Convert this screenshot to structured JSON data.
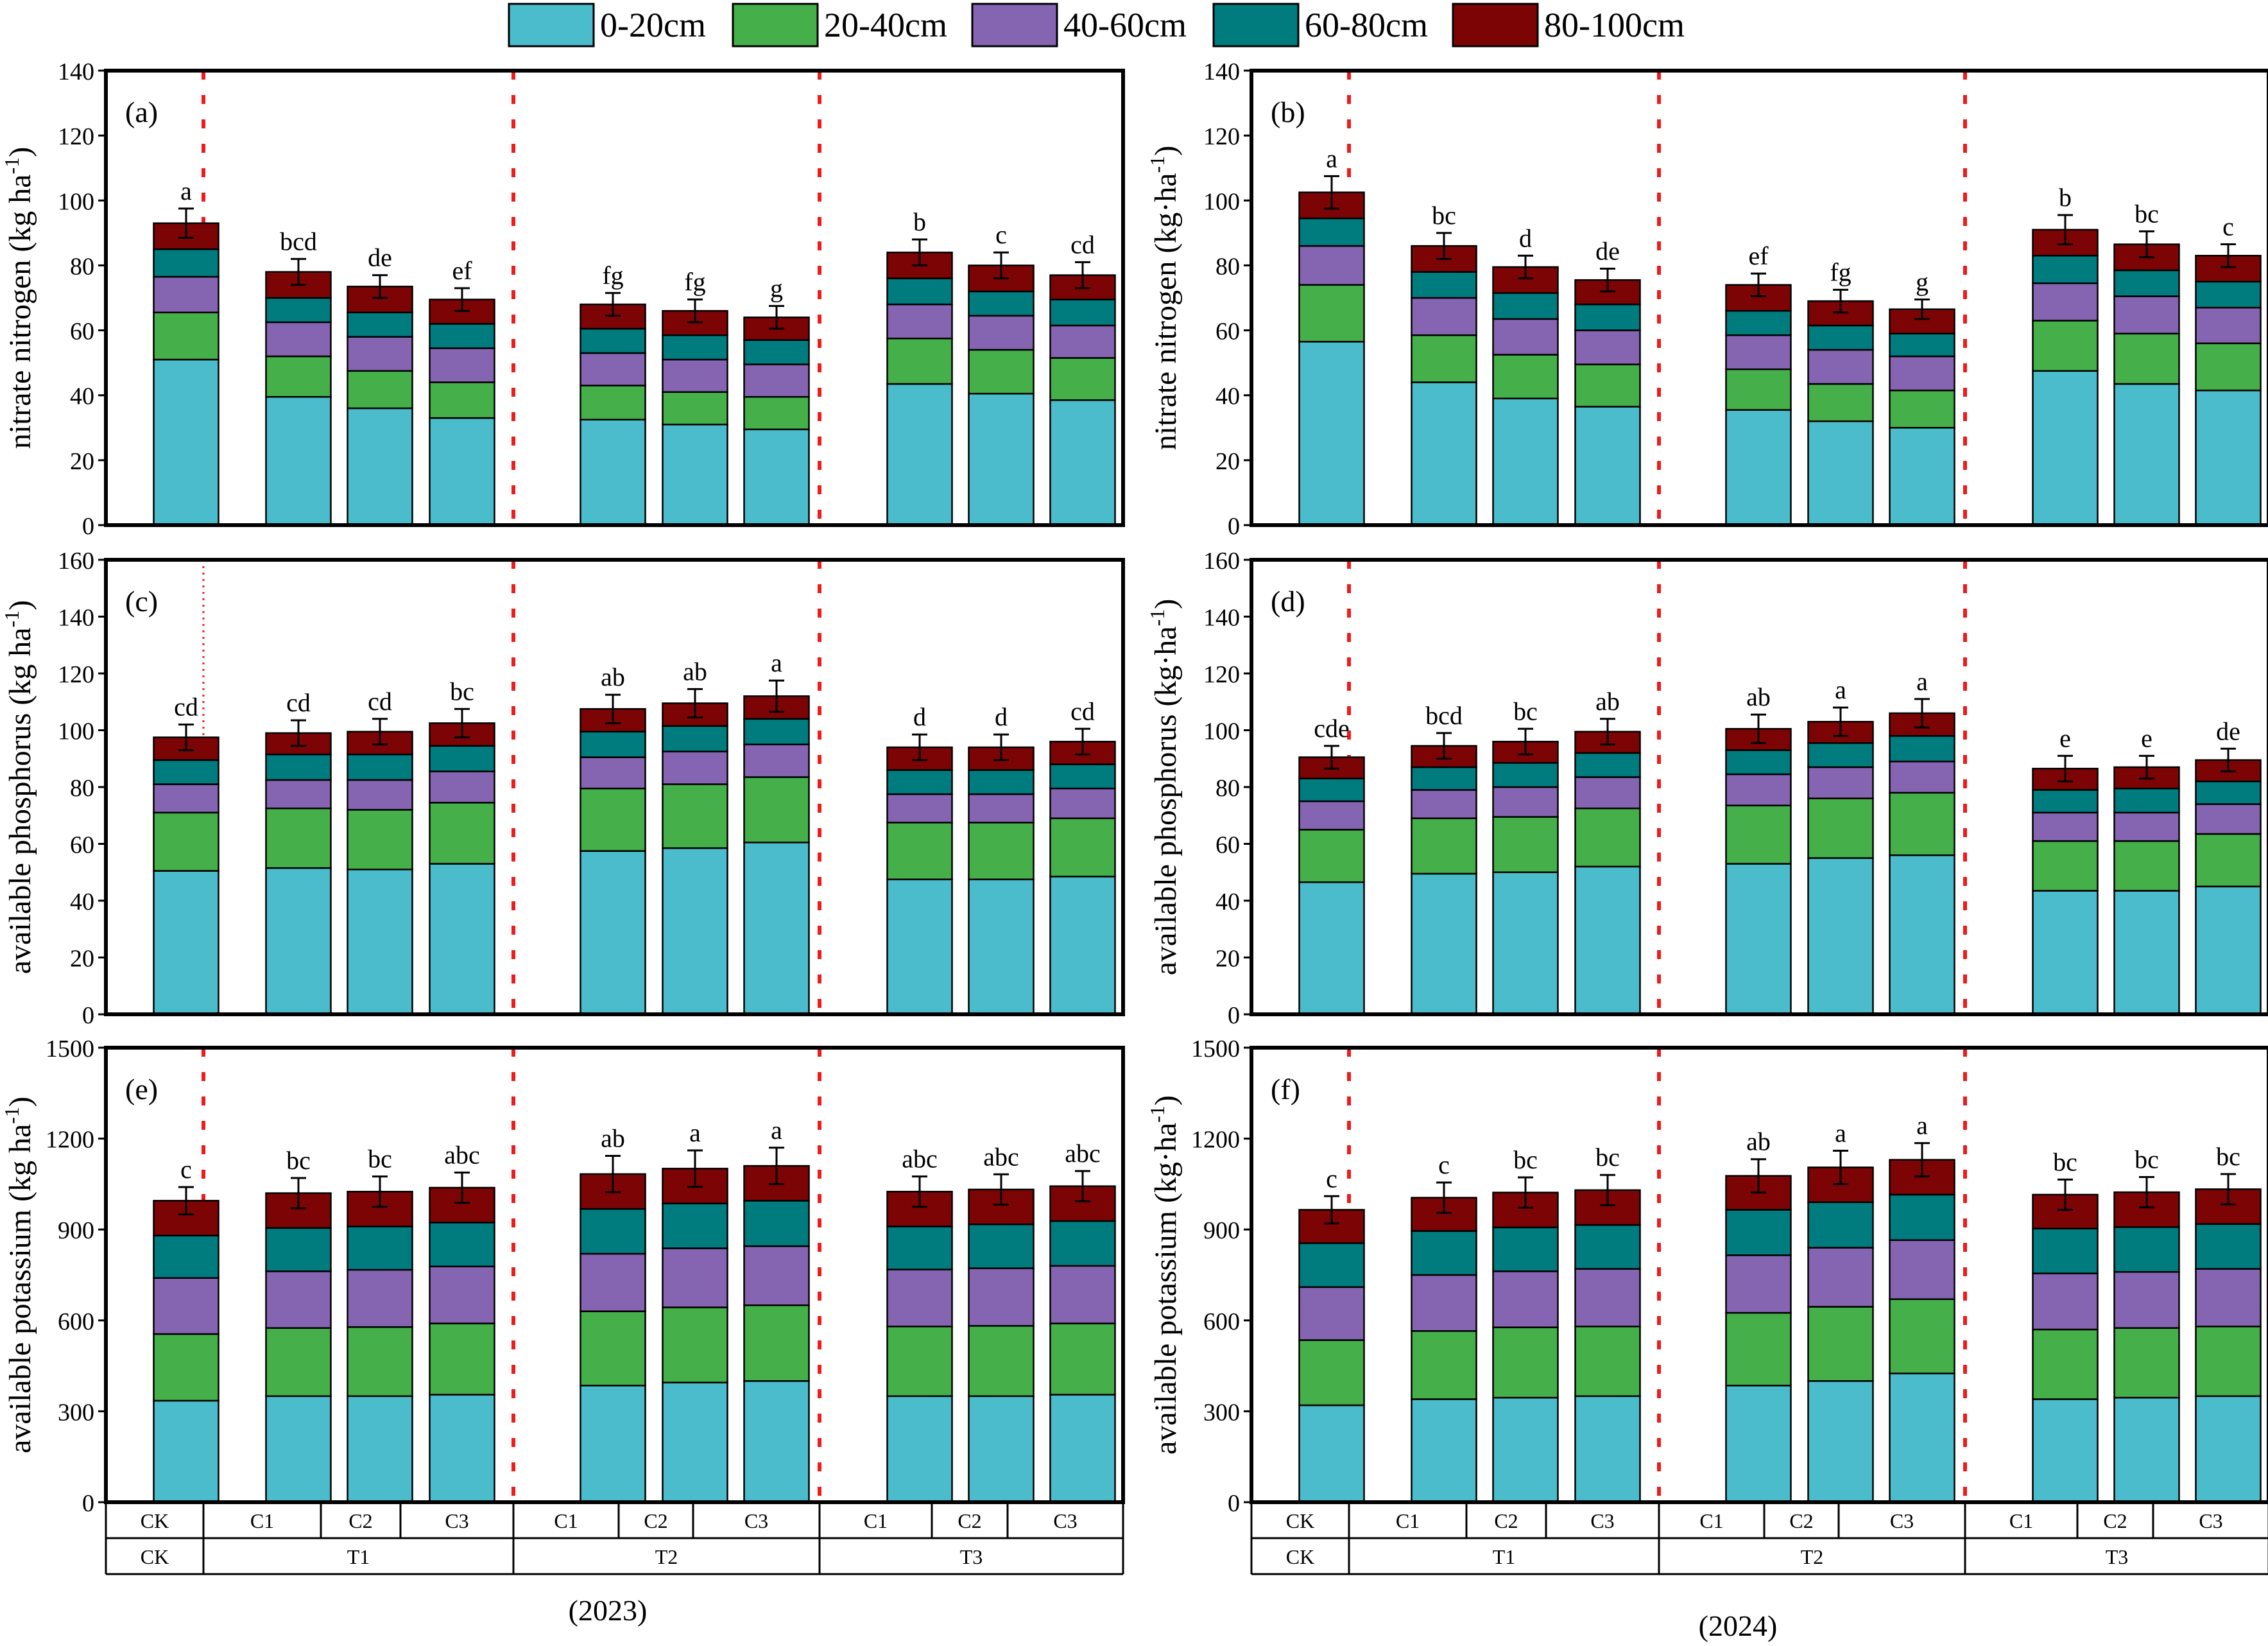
{
  "legend": [
    {
      "label": "0-20cm",
      "color": "#4bbccb"
    },
    {
      "label": "20-40cm",
      "color": "#45b04a"
    },
    {
      "label": "40-60cm",
      "color": "#8564b1"
    },
    {
      "label": "60-80cm",
      "color": "#007c7e"
    },
    {
      "label": "80-100cm",
      "color": "#7d0405"
    }
  ],
  "year_labels": [
    "(2023)",
    "(2024)"
  ],
  "x_axis": {
    "levels1": [
      "CK",
      "C1",
      "C2",
      "C3",
      "C1",
      "C2",
      "C3",
      "C1",
      "C2",
      "C3"
    ],
    "levels2": [
      "CK",
      "T1",
      "T2",
      "T3"
    ]
  },
  "chart_data": [
    {
      "type": "bar",
      "stacked": true,
      "panel": "(a)",
      "ylabel": "nitrate nitrogen (kg ha",
      "ylabel_sup": "-1",
      "ylabel_end": ")",
      "ylim": [
        0,
        140
      ],
      "yticks": [
        "0",
        "20",
        "40",
        "60",
        "80",
        "100",
        "120",
        "140"
      ],
      "categories": [
        "CK",
        "T1-C1",
        "T1-C2",
        "T1-C3",
        "T2-C1",
        "T2-C2",
        "T2-C3",
        "T3-C1",
        "T3-C2",
        "T3-C3"
      ],
      "series": [
        {
          "name": "0-20cm",
          "values": [
            51,
            39.5,
            36,
            33,
            32.5,
            31,
            29.5,
            43.5,
            40.5,
            38.5
          ]
        },
        {
          "name": "20-40cm",
          "values": [
            14.5,
            12.5,
            11.5,
            11,
            10.5,
            10,
            10,
            14,
            13.5,
            13
          ]
        },
        {
          "name": "40-60cm",
          "values": [
            11,
            10.5,
            10.5,
            10.5,
            10,
            10,
            10,
            10.5,
            10.5,
            10
          ]
        },
        {
          "name": "60-80cm",
          "values": [
            8.5,
            7.5,
            7.5,
            7.5,
            7.5,
            7.5,
            7.5,
            8,
            7.5,
            8
          ]
        },
        {
          "name": "80-100cm",
          "values": [
            8,
            8,
            8,
            7.5,
            7.5,
            7.5,
            7,
            8,
            8,
            7.5
          ]
        }
      ],
      "error": [
        4.5,
        4,
        3.5,
        3.5,
        3.5,
        3.5,
        3.5,
        4,
        4,
        4
      ],
      "letters": [
        "a",
        "bcd",
        "de",
        "ef",
        "fg",
        "fg",
        "g",
        "b",
        "c",
        "cd"
      ]
    },
    {
      "type": "bar",
      "stacked": true,
      "panel": "(b)",
      "ylabel": "nitrate nitrogen (kg·ha",
      "ylabel_sup": "-1",
      "ylabel_end": ")",
      "ylim": [
        0,
        140
      ],
      "yticks": [
        "0",
        "20",
        "40",
        "60",
        "80",
        "100",
        "120",
        "140"
      ],
      "categories": [
        "CK",
        "T1-C1",
        "T1-C2",
        "T1-C3",
        "T2-C1",
        "T2-C2",
        "T2-C3",
        "T3-C1",
        "T3-C2",
        "T3-C3"
      ],
      "series": [
        {
          "name": "0-20cm",
          "values": [
            56.5,
            44,
            39,
            36.5,
            35.5,
            32,
            30,
            47.5,
            43.5,
            41.5
          ]
        },
        {
          "name": "20-40cm",
          "values": [
            17.5,
            14.5,
            13.5,
            13,
            12.5,
            11.5,
            11.5,
            15.5,
            15.5,
            14.5
          ]
        },
        {
          "name": "40-60cm",
          "values": [
            12,
            11.5,
            11,
            10.5,
            10.5,
            10.5,
            10.5,
            11.5,
            11.5,
            11
          ]
        },
        {
          "name": "60-80cm",
          "values": [
            8.5,
            8,
            8,
            8,
            7.5,
            7.5,
            7,
            8.5,
            8,
            8
          ]
        },
        {
          "name": "80-100cm",
          "values": [
            8,
            8,
            8,
            7.5,
            8,
            7.5,
            7.5,
            8,
            8,
            8
          ]
        }
      ],
      "error": [
        5,
        4,
        3.5,
        3.5,
        3.5,
        3.5,
        3,
        4.5,
        4,
        3.5
      ],
      "letters": [
        "a",
        "bc",
        "d",
        "de",
        "ef",
        "fg",
        "g",
        "b",
        "bc",
        "c"
      ]
    },
    {
      "type": "bar",
      "stacked": true,
      "panel": "(c)",
      "ylabel": "available phosphorus  (kg ha",
      "ylabel_sup": "-1",
      "ylabel_end": ")",
      "ylim": [
        0,
        160
      ],
      "yticks": [
        "0",
        "20",
        "40",
        "60",
        "80",
        "100",
        "120",
        "140",
        "160"
      ],
      "categories": [
        "CK",
        "T1-C1",
        "T1-C2",
        "T1-C3",
        "T2-C1",
        "T2-C2",
        "T2-C3",
        "T3-C1",
        "T3-C2",
        "T3-C3"
      ],
      "series": [
        {
          "name": "0-20cm",
          "values": [
            50.5,
            51.5,
            51,
            53,
            57.5,
            58.5,
            60.5,
            47.5,
            47.5,
            48.5
          ]
        },
        {
          "name": "20-40cm",
          "values": [
            20.5,
            21,
            21,
            21.5,
            22,
            22.5,
            23,
            20,
            20,
            20.5
          ]
        },
        {
          "name": "40-60cm",
          "values": [
            10,
            10,
            10.5,
            11,
            11,
            11.5,
            11.5,
            10,
            10,
            10.5
          ]
        },
        {
          "name": "60-80cm",
          "values": [
            8.5,
            9,
            9,
            9,
            9,
            9,
            9,
            8.5,
            8.5,
            8.5
          ]
        },
        {
          "name": "80-100cm",
          "values": [
            8,
            7.5,
            8,
            8,
            8,
            8,
            8,
            8,
            8,
            8
          ]
        }
      ],
      "error": [
        4.5,
        4.5,
        4.5,
        5,
        5,
        5,
        5.5,
        4.5,
        4.5,
        4.5
      ],
      "letters": [
        "cd",
        "cd",
        "cd",
        "bc",
        "ab",
        "ab",
        "a",
        "d",
        "d",
        "cd"
      ]
    },
    {
      "type": "bar",
      "stacked": true,
      "panel": "(d)",
      "ylabel": "available phosphorus  (kg·ha",
      "ylabel_sup": "-1",
      "ylabel_end": ")",
      "ylim": [
        0,
        160
      ],
      "yticks": [
        "0",
        "20",
        "40",
        "60",
        "80",
        "100",
        "120",
        "140",
        "160"
      ],
      "categories": [
        "CK",
        "T1-C1",
        "T1-C2",
        "T1-C3",
        "T2-C1",
        "T2-C2",
        "T2-C3",
        "T3-C1",
        "T3-C2",
        "T3-C3"
      ],
      "series": [
        {
          "name": "0-20cm",
          "values": [
            46.5,
            49.5,
            50,
            52,
            53,
            55,
            56,
            43.5,
            43.5,
            45
          ]
        },
        {
          "name": "20-40cm",
          "values": [
            18.5,
            19.5,
            19.5,
            20.5,
            20.5,
            21,
            22,
            17.5,
            17.5,
            18.5
          ]
        },
        {
          "name": "40-60cm",
          "values": [
            10,
            10,
            10.5,
            11,
            11,
            11,
            11,
            10,
            10,
            10.5
          ]
        },
        {
          "name": "60-80cm",
          "values": [
            8,
            8,
            8.5,
            8.5,
            8.5,
            8.5,
            9,
            8,
            8.5,
            8
          ]
        },
        {
          "name": "80-100cm",
          "values": [
            7.5,
            7.5,
            7.5,
            7.5,
            7.5,
            7.5,
            8,
            7.5,
            7.5,
            7.5
          ]
        }
      ],
      "error": [
        4,
        4.5,
        4.5,
        4.5,
        5,
        5,
        5,
        4.5,
        4,
        4
      ],
      "letters": [
        "cde",
        "bcd",
        "bc",
        "ab",
        "ab",
        "a",
        "a",
        "e",
        "e",
        "de"
      ]
    },
    {
      "type": "bar",
      "stacked": true,
      "panel": "(e)",
      "ylabel": "available potassium (kg ha",
      "ylabel_sup": "-1",
      "ylabel_end": ")",
      "ylim": [
        0,
        1500
      ],
      "yticks": [
        "0",
        "300",
        "600",
        "900",
        "1200",
        "1500"
      ],
      "categories": [
        "CK",
        "T1-C1",
        "T1-C2",
        "T1-C3",
        "T2-C1",
        "T2-C2",
        "T2-C3",
        "T3-C1",
        "T3-C2",
        "T3-C3"
      ],
      "series": [
        {
          "name": "0-20cm",
          "values": [
            335,
            350,
            350,
            355,
            385,
            395,
            400,
            350,
            350,
            355
          ]
        },
        {
          "name": "20-40cm",
          "values": [
            220,
            225,
            228,
            235,
            245,
            248,
            250,
            230,
            232,
            235
          ]
        },
        {
          "name": "40-60cm",
          "values": [
            185,
            187,
            189,
            188,
            190,
            195,
            195,
            188,
            190,
            190
          ]
        },
        {
          "name": "60-80cm",
          "values": [
            140,
            143,
            143,
            145,
            148,
            148,
            150,
            142,
            145,
            148
          ]
        },
        {
          "name": "80-100cm",
          "values": [
            115,
            115,
            115,
            115,
            115,
            115,
            115,
            115,
            115,
            115
          ]
        }
      ],
      "error": [
        45,
        50,
        50,
        50,
        60,
        60,
        60,
        50,
        50,
        50
      ],
      "letters": [
        "c",
        "bc",
        "bc",
        "abc",
        "ab",
        "a",
        "a",
        "abc",
        "abc",
        "abc"
      ]
    },
    {
      "type": "bar",
      "stacked": true,
      "panel": "(f)",
      "ylabel": "available potassium (kg·ha",
      "ylabel_sup": "-1",
      "ylabel_end": ")",
      "ylim": [
        0,
        1500
      ],
      "yticks": [
        "0",
        "300",
        "600",
        "900",
        "1200",
        "1500"
      ],
      "categories": [
        "CK",
        "T1-C1",
        "T1-C2",
        "T1-C3",
        "T2-C1",
        "T2-C2",
        "T2-C3",
        "T3-C1",
        "T3-C2",
        "T3-C3"
      ],
      "series": [
        {
          "name": "0-20cm",
          "values": [
            320,
            340,
            345,
            350,
            385,
            400,
            425,
            340,
            345,
            350
          ]
        },
        {
          "name": "20-40cm",
          "values": [
            215,
            225,
            232,
            230,
            240,
            245,
            245,
            230,
            230,
            230
          ]
        },
        {
          "name": "40-60cm",
          "values": [
            175,
            185,
            185,
            190,
            190,
            195,
            195,
            185,
            185,
            190
          ]
        },
        {
          "name": "60-80cm",
          "values": [
            145,
            145,
            145,
            145,
            150,
            150,
            150,
            148,
            148,
            148
          ]
        },
        {
          "name": "80-100cm",
          "values": [
            110,
            110,
            115,
            115,
            112,
            115,
            115,
            112,
            115,
            115
          ]
        }
      ],
      "error": [
        45,
        50,
        50,
        50,
        55,
        55,
        55,
        50,
        50,
        50
      ],
      "letters": [
        "c",
        "c",
        "bc",
        "bc",
        "ab",
        "a",
        "a",
        "bc",
        "bc",
        "bc"
      ]
    }
  ]
}
